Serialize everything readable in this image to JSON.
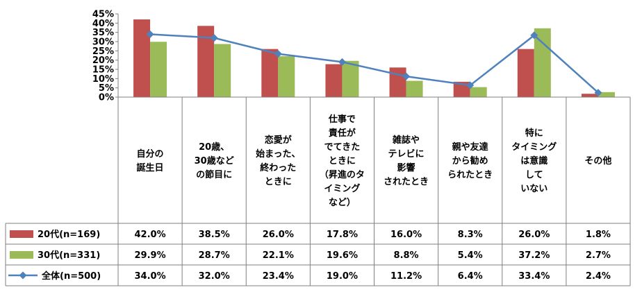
{
  "chart_data": {
    "type": "bar",
    "title": "",
    "xlabel": "",
    "ylabel": "",
    "ylim": [
      0,
      45
    ],
    "yticks": [
      0,
      5,
      10,
      15,
      20,
      25,
      30,
      35,
      40,
      45
    ],
    "ytick_labels": [
      "0%",
      "5%",
      "10%",
      "15%",
      "20%",
      "25%",
      "30%",
      "35%",
      "40%",
      "45%"
    ],
    "grid": false,
    "legend_position": "data-table-left",
    "categories": [
      [
        "自分の",
        "誕生日"
      ],
      [
        "20歳、",
        "30歳など",
        "の節目に"
      ],
      [
        "恋愛が",
        "始まった、",
        "終わった",
        "ときに"
      ],
      [
        "仕事で",
        "責任が",
        "でてきた",
        "ときに",
        "（昇進のタ",
        "イミング",
        "など）"
      ],
      [
        "雑誌や",
        "テレビに",
        "影響",
        "されたとき"
      ],
      [
        "親や友達",
        "から勧め",
        "られたとき"
      ],
      [
        "特に",
        "タイミング",
        "は意識",
        "して",
        "いない"
      ],
      [
        "その他"
      ]
    ],
    "series": [
      {
        "name": "20代(n=169)",
        "kind": "bar",
        "color": "#c0504d",
        "values": [
          42.0,
          38.5,
          26.0,
          17.8,
          16.0,
          8.3,
          26.0,
          1.8
        ],
        "labels": [
          "42.0%",
          "38.5%",
          "26.0%",
          "17.8%",
          "16.0%",
          "8.3%",
          "26.0%",
          "1.8%"
        ]
      },
      {
        "name": "30代(n=331)",
        "kind": "bar",
        "color": "#9bbb59",
        "values": [
          29.9,
          28.7,
          22.1,
          19.6,
          8.8,
          5.4,
          37.2,
          2.7
        ],
        "labels": [
          "29.9%",
          "28.7%",
          "22.1%",
          "19.6%",
          "8.8%",
          "5.4%",
          "37.2%",
          "2.7%"
        ]
      },
      {
        "name": "全体(n=500)",
        "kind": "line",
        "color": "#4f81bd",
        "values": [
          34.0,
          32.0,
          23.4,
          19.0,
          11.2,
          6.4,
          33.4,
          2.4
        ],
        "labels": [
          "34.0%",
          "32.0%",
          "23.4%",
          "19.0%",
          "11.2%",
          "6.4%",
          "33.4%",
          "2.4%"
        ]
      }
    ]
  }
}
